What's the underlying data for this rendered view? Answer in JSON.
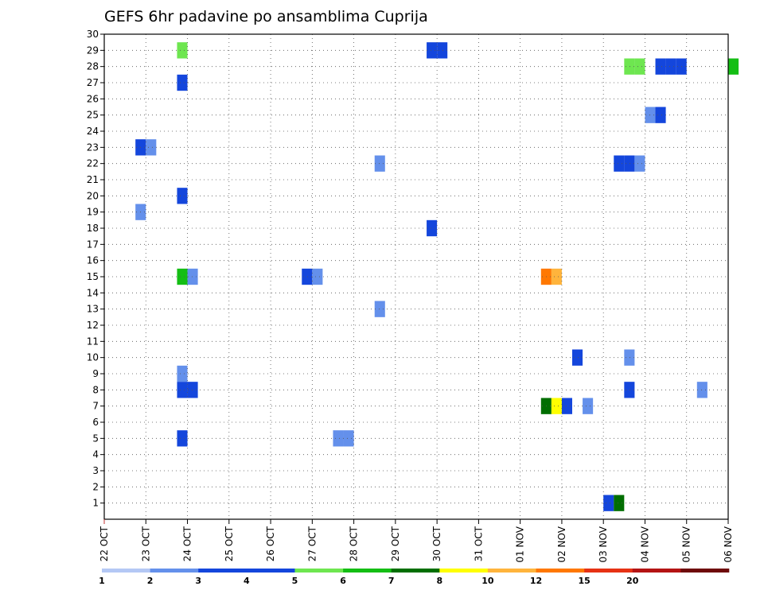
{
  "chart_data": {
    "type": "heatmap",
    "title": "GEFS 6hr padavine po ansamblima Cuprija",
    "xlabel": "",
    "ylabel": "",
    "x_ticks": [
      "22 OCT",
      "23 OCT",
      "24 OCT",
      "25 OCT",
      "26 OCT",
      "27 OCT",
      "28 OCT",
      "29 OCT",
      "30 OCT",
      "31 OCT",
      "01 NOV",
      "02 NOV",
      "03 NOV",
      "04 NOV",
      "05 NOV",
      "06 NOV"
    ],
    "y_ticks": [
      "1",
      "2",
      "3",
      "4",
      "5",
      "6",
      "7",
      "8",
      "9",
      "10",
      "11",
      "12",
      "13",
      "14",
      "15",
      "16",
      "17",
      "18",
      "19",
      "20",
      "21",
      "22",
      "23",
      "24",
      "25",
      "26",
      "27",
      "28",
      "29",
      "30"
    ],
    "ylim": [
      0,
      30
    ],
    "grid": true,
    "colorbar": {
      "labels": [
        "1",
        "2",
        "3",
        "4",
        "5",
        "6",
        "7",
        "8",
        "10",
        "12",
        "15",
        "20"
      ],
      "colors": [
        "#b4c8f5",
        "#6490eb",
        "#1446dc",
        "#1446dc",
        "#6ee650",
        "#14be14",
        "#006e00",
        "#ffff00",
        "#ffb43c",
        "#ff7800",
        "#e63214",
        "#b41414",
        "#6e0a0a"
      ]
    },
    "cells": [
      {
        "x": "23 OCT 18Z",
        "member": 29,
        "value": 4.5
      },
      {
        "x": "23 OCT 18Z",
        "member": 27,
        "value": 2.5
      },
      {
        "x": "23 OCT 18Z",
        "member": 20,
        "value": 3.5
      },
      {
        "x": "23 OCT 18Z",
        "member": 15,
        "value": 5.5
      },
      {
        "x": "24 OCT 00Z",
        "member": 15,
        "value": 1.5
      },
      {
        "x": "23 OCT 18Z",
        "member": 9,
        "value": 1.5
      },
      {
        "x": "23 OCT 18Z",
        "member": 8,
        "value": 3.5
      },
      {
        "x": "24 OCT 00Z",
        "member": 8,
        "value": 3.5
      },
      {
        "x": "23 OCT 18Z",
        "member": 5,
        "value": 2.5
      },
      {
        "x": "22 OCT 18Z",
        "member": 23,
        "value": 2.5
      },
      {
        "x": "23 OCT 00Z",
        "member": 23,
        "value": 1.5
      },
      {
        "x": "22 OCT 18Z",
        "member": 19,
        "value": 1.5
      },
      {
        "x": "26 OCT 18Z",
        "member": 15,
        "value": 2.5
      },
      {
        "x": "27 OCT 00Z",
        "member": 15,
        "value": 1.5
      },
      {
        "x": "27 OCT 12Z",
        "member": 5,
        "value": 1.5
      },
      {
        "x": "27 OCT 18Z",
        "member": 5,
        "value": 1.5
      },
      {
        "x": "28 OCT 12Z",
        "member": 22,
        "value": 1.5
      },
      {
        "x": "28 OCT 12Z",
        "member": 13,
        "value": 1.5
      },
      {
        "x": "29 OCT 18Z",
        "member": 18,
        "value": 3.5
      },
      {
        "x": "29 OCT 18Z",
        "member": 29,
        "value": 2.5
      },
      {
        "x": "30 OCT 00Z",
        "member": 29,
        "value": 2.5
      },
      {
        "x": "01 NOV 12Z",
        "member": 15,
        "value": 11
      },
      {
        "x": "01 NOV 18Z",
        "member": 15,
        "value": 9
      },
      {
        "x": "01 NOV 12Z",
        "member": 7,
        "value": 6.5
      },
      {
        "x": "01 NOV 18Z",
        "member": 7,
        "value": 7.5
      },
      {
        "x": "02 NOV 00Z",
        "member": 7,
        "value": 3.5
      },
      {
        "x": "02 NOV 06Z",
        "member": 10,
        "value": 2.5
      },
      {
        "x": "02 NOV 12Z",
        "member": 7,
        "value": 1.5
      },
      {
        "x": "03 NOV 00Z",
        "member": 1,
        "value": 2.5
      },
      {
        "x": "03 NOV 06Z",
        "member": 1,
        "value": 6.5
      },
      {
        "x": "03 NOV 06Z",
        "member": 22,
        "value": 2.5
      },
      {
        "x": "03 NOV 12Z",
        "member": 22,
        "value": 2.5
      },
      {
        "x": "03 NOV 18Z",
        "member": 22,
        "value": 1.5
      },
      {
        "x": "03 NOV 12Z",
        "member": 10,
        "value": 1.5
      },
      {
        "x": "03 NOV 12Z",
        "member": 8,
        "value": 3.5
      },
      {
        "x": "03 NOV 12Z",
        "member": 28,
        "value": 4.5
      },
      {
        "x": "03 NOV 18Z",
        "member": 28,
        "value": 4.5
      },
      {
        "x": "04 NOV 00Z",
        "member": 25,
        "value": 1.5
      },
      {
        "x": "04 NOV 06Z",
        "member": 25,
        "value": 2.5
      },
      {
        "x": "04 NOV 06Z",
        "member": 28,
        "value": 2.5
      },
      {
        "x": "04 NOV 12Z",
        "member": 28,
        "value": 3.5
      },
      {
        "x": "04 NOV 18Z",
        "member": 28,
        "value": 3.5
      },
      {
        "x": "05 NOV 06Z",
        "member": 8,
        "value": 1.5
      },
      {
        "x": "06 NOV 00Z",
        "member": 28,
        "value": 5.5
      }
    ]
  }
}
